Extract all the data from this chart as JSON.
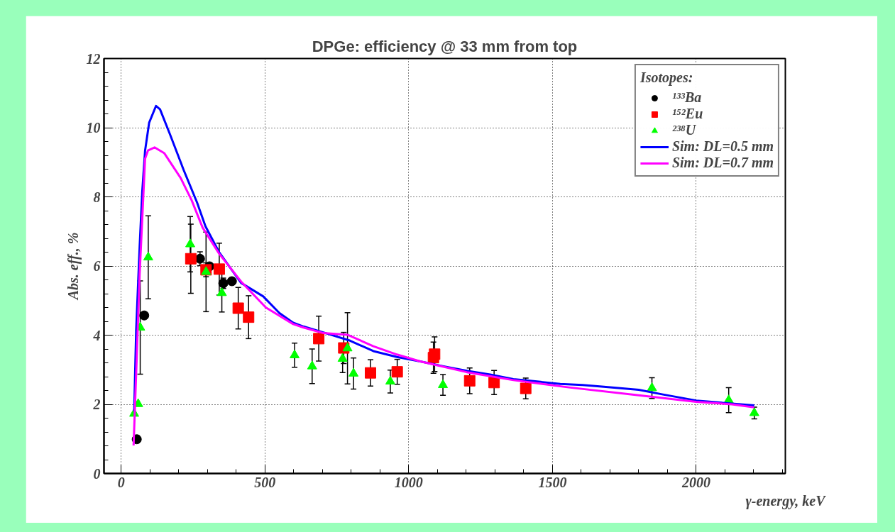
{
  "chart_data": {
    "type": "scatter",
    "title": "DPGe: efficiency @ 33 mm from top",
    "xlabel": "γ-energy, keV",
    "ylabel": "Abs. eff., %",
    "legend_title": "Isotopes:",
    "xlim": [
      -60,
      2310
    ],
    "ylim": [
      0,
      12
    ],
    "xticks": [
      0,
      500,
      1000,
      1500,
      2000
    ],
    "yticks": [
      0,
      2,
      4,
      6,
      8,
      10,
      12
    ],
    "grid": true,
    "legend": "top right",
    "series": [
      {
        "name": "¹³³Ba",
        "marker": "circle",
        "color": "#000000",
        "x": [
          54,
          80,
          274,
          307,
          355,
          385
        ],
        "values": [
          0.99,
          4.57,
          6.21,
          5.99,
          5.5,
          5.56
        ],
        "errors": [
          0.1,
          null,
          0.2,
          0.1,
          0.15,
          0.1
        ]
      },
      {
        "name": "¹⁵²Eu",
        "marker": "square",
        "color": "#ff0000",
        "x": [
          242,
          295,
          341,
          407,
          443,
          687,
          774,
          867,
          960,
          1086,
          1090,
          1212,
          1297,
          1407
        ],
        "values": [
          6.21,
          5.89,
          5.91,
          4.78,
          4.52,
          3.9,
          3.63,
          2.91,
          2.94,
          3.35,
          3.45,
          2.68,
          2.63,
          2.46
        ],
        "errors": [
          1.0,
          0.2,
          0.75,
          0.6,
          0.62,
          0.65,
          0.45,
          0.38,
          0.36,
          0.45,
          0.5,
          0.37,
          0.35,
          0.3
        ]
      },
      {
        "name": "²³⁸U",
        "marker": "triangle",
        "color": "#00ff00",
        "x": [
          45,
          59,
          66,
          94,
          240,
          295,
          350,
          603,
          664,
          770,
          787,
          808,
          936,
          1119,
          1846,
          2113,
          2202
        ],
        "values": [
          1.73,
          2.01,
          4.22,
          6.25,
          6.63,
          5.83,
          5.22,
          3.42,
          3.1,
          3.32,
          3.62,
          2.89,
          2.66,
          2.56,
          2.47,
          2.12,
          1.75
        ],
        "errors": [
          null,
          null,
          1.35,
          1.2,
          0.8,
          1.15,
          0.55,
          0.35,
          0.5,
          0.4,
          1.03,
          0.45,
          0.33,
          0.3,
          0.3,
          0.36,
          0.17
        ]
      },
      {
        "name": "Sim: DL=0.5 mm",
        "type": "line",
        "color": "#0000ff",
        "x": [
          45,
          52,
          64,
          73,
          83,
          97,
          121,
          135,
          169,
          217,
          264,
          293,
          341,
          417,
          494,
          550,
          598,
          634,
          703,
          796,
          877,
          959,
          1040,
          1121,
          1202,
          1283,
          1364,
          1446,
          1527,
          1604,
          1679,
          1800,
          1881,
          2000,
          2124,
          2202
        ],
        "values": [
          1.8,
          4.16,
          6.55,
          8.14,
          9.34,
          10.14,
          10.63,
          10.53,
          9.82,
          8.78,
          7.83,
          7.15,
          6.39,
          5.51,
          5.12,
          4.64,
          4.36,
          4.25,
          4.08,
          3.84,
          3.54,
          3.37,
          3.24,
          3.1,
          2.97,
          2.86,
          2.73,
          2.66,
          2.59,
          2.56,
          2.51,
          2.42,
          2.29,
          2.11,
          2.02,
          1.97
        ]
      },
      {
        "name": "Sim: DL=0.7 mm",
        "type": "line",
        "color": "#ff00ff",
        "x": [
          43,
          54,
          64,
          83,
          93,
          116,
          150,
          207,
          245,
          283,
          341,
          417,
          503,
          598,
          634,
          703,
          788,
          877,
          959,
          1040,
          1202,
          1364,
          1557,
          1800,
          2000,
          2124,
          2202
        ],
        "values": [
          0.81,
          3.36,
          5.75,
          9.1,
          9.34,
          9.43,
          9.26,
          8.54,
          7.9,
          7.11,
          6.35,
          5.55,
          4.8,
          4.32,
          4.22,
          4.06,
          4.01,
          3.68,
          3.44,
          3.24,
          2.93,
          2.7,
          2.49,
          2.26,
          2.07,
          2.0,
          1.91
        ]
      }
    ]
  }
}
